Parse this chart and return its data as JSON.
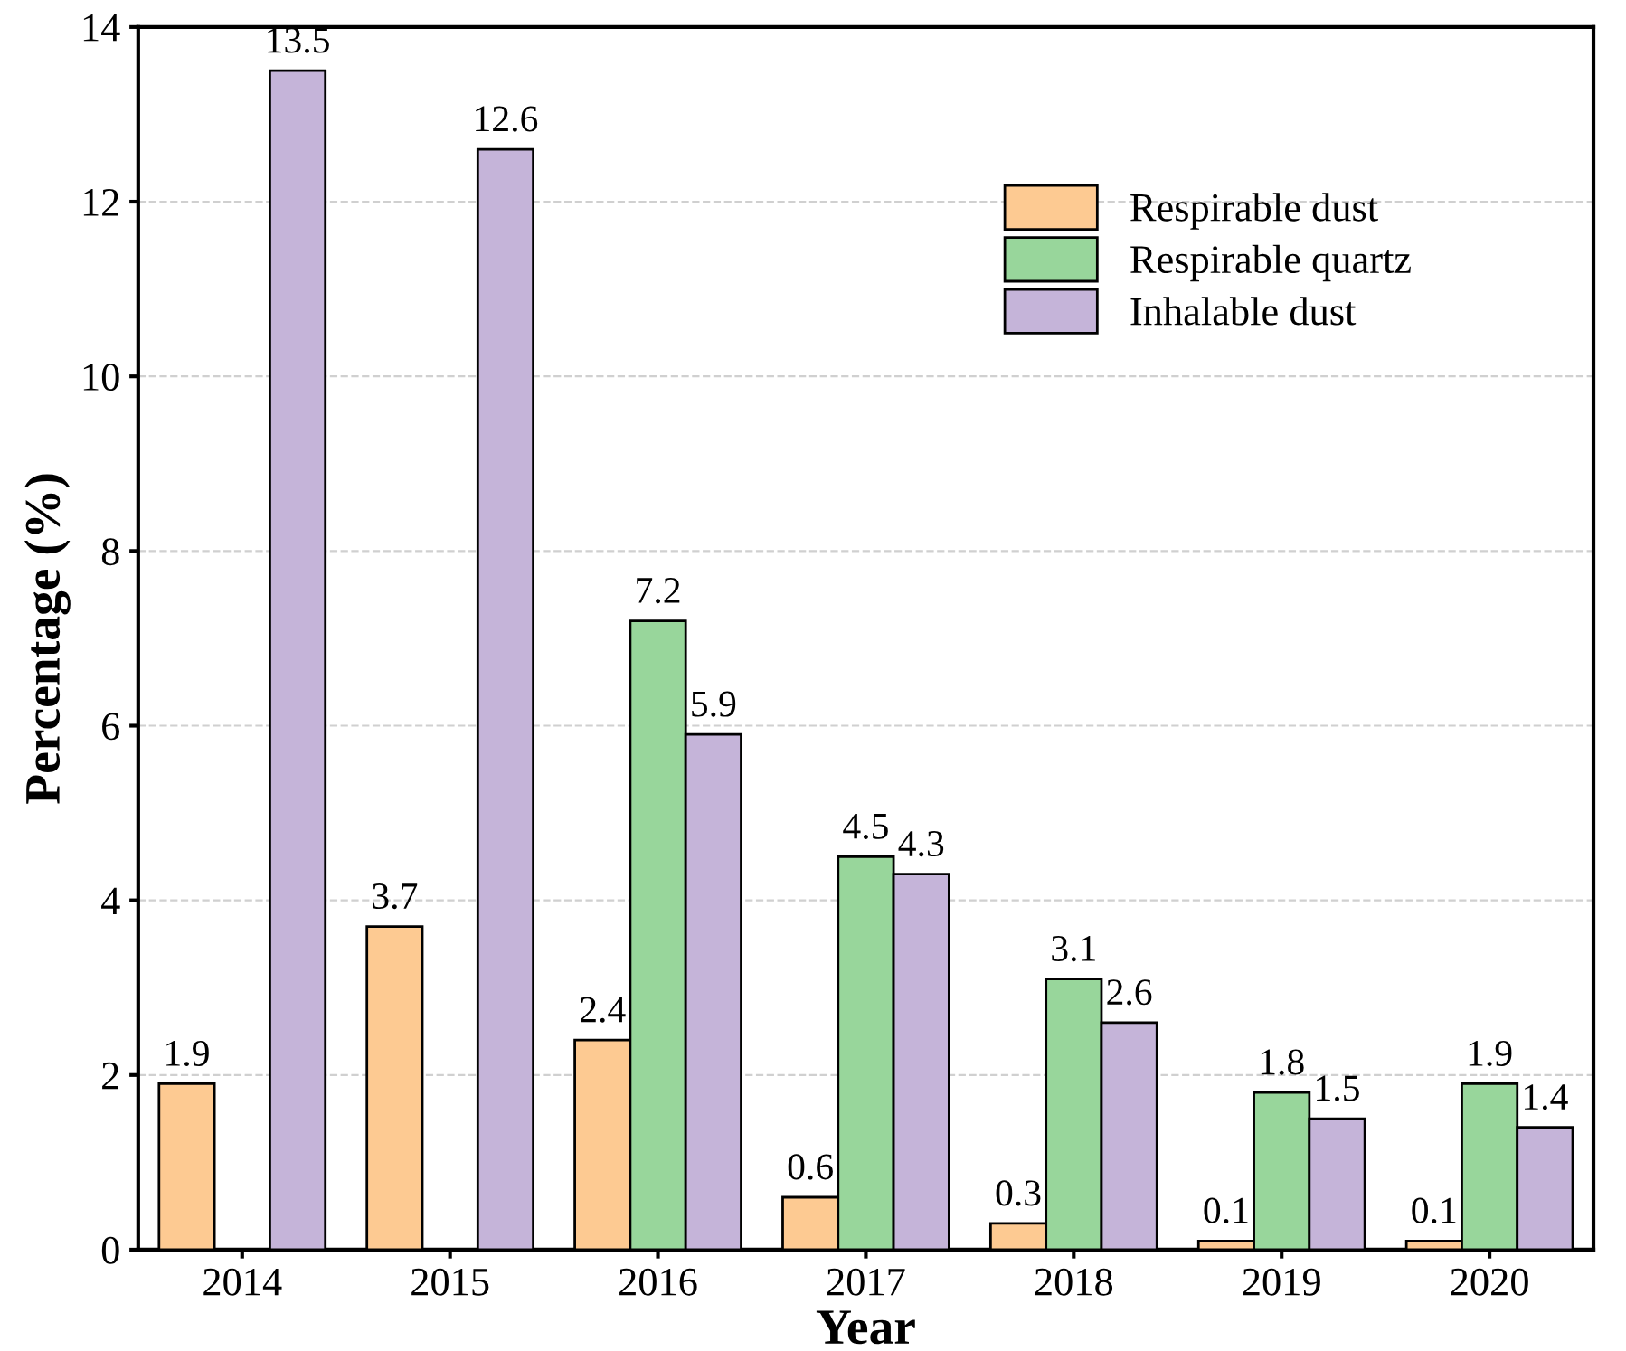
{
  "chart_data": {
    "type": "bar",
    "xlabel": "Year",
    "ylabel": "Percentage (%)",
    "categories": [
      "2014",
      "2015",
      "2016",
      "2017",
      "2018",
      "2019",
      "2020"
    ],
    "series": [
      {
        "name": "Respirable dust",
        "color": "#fdca92",
        "values": [
          1.9,
          3.7,
          2.4,
          0.6,
          0.3,
          0.1,
          0.1
        ]
      },
      {
        "name": "Respirable quartz",
        "color": "#98d69b",
        "values": [
          null,
          null,
          7.2,
          4.5,
          3.1,
          1.8,
          1.9
        ]
      },
      {
        "name": "Inhalable dust",
        "color": "#c5b4d9",
        "values": [
          13.5,
          12.6,
          5.9,
          4.3,
          2.6,
          1.5,
          1.4
        ]
      }
    ],
    "ylim": [
      0,
      14
    ],
    "yticks": [
      0,
      2,
      4,
      6,
      8,
      10,
      12,
      14
    ],
    "grid": "y",
    "legend": "top right",
    "data_labels": true
  }
}
